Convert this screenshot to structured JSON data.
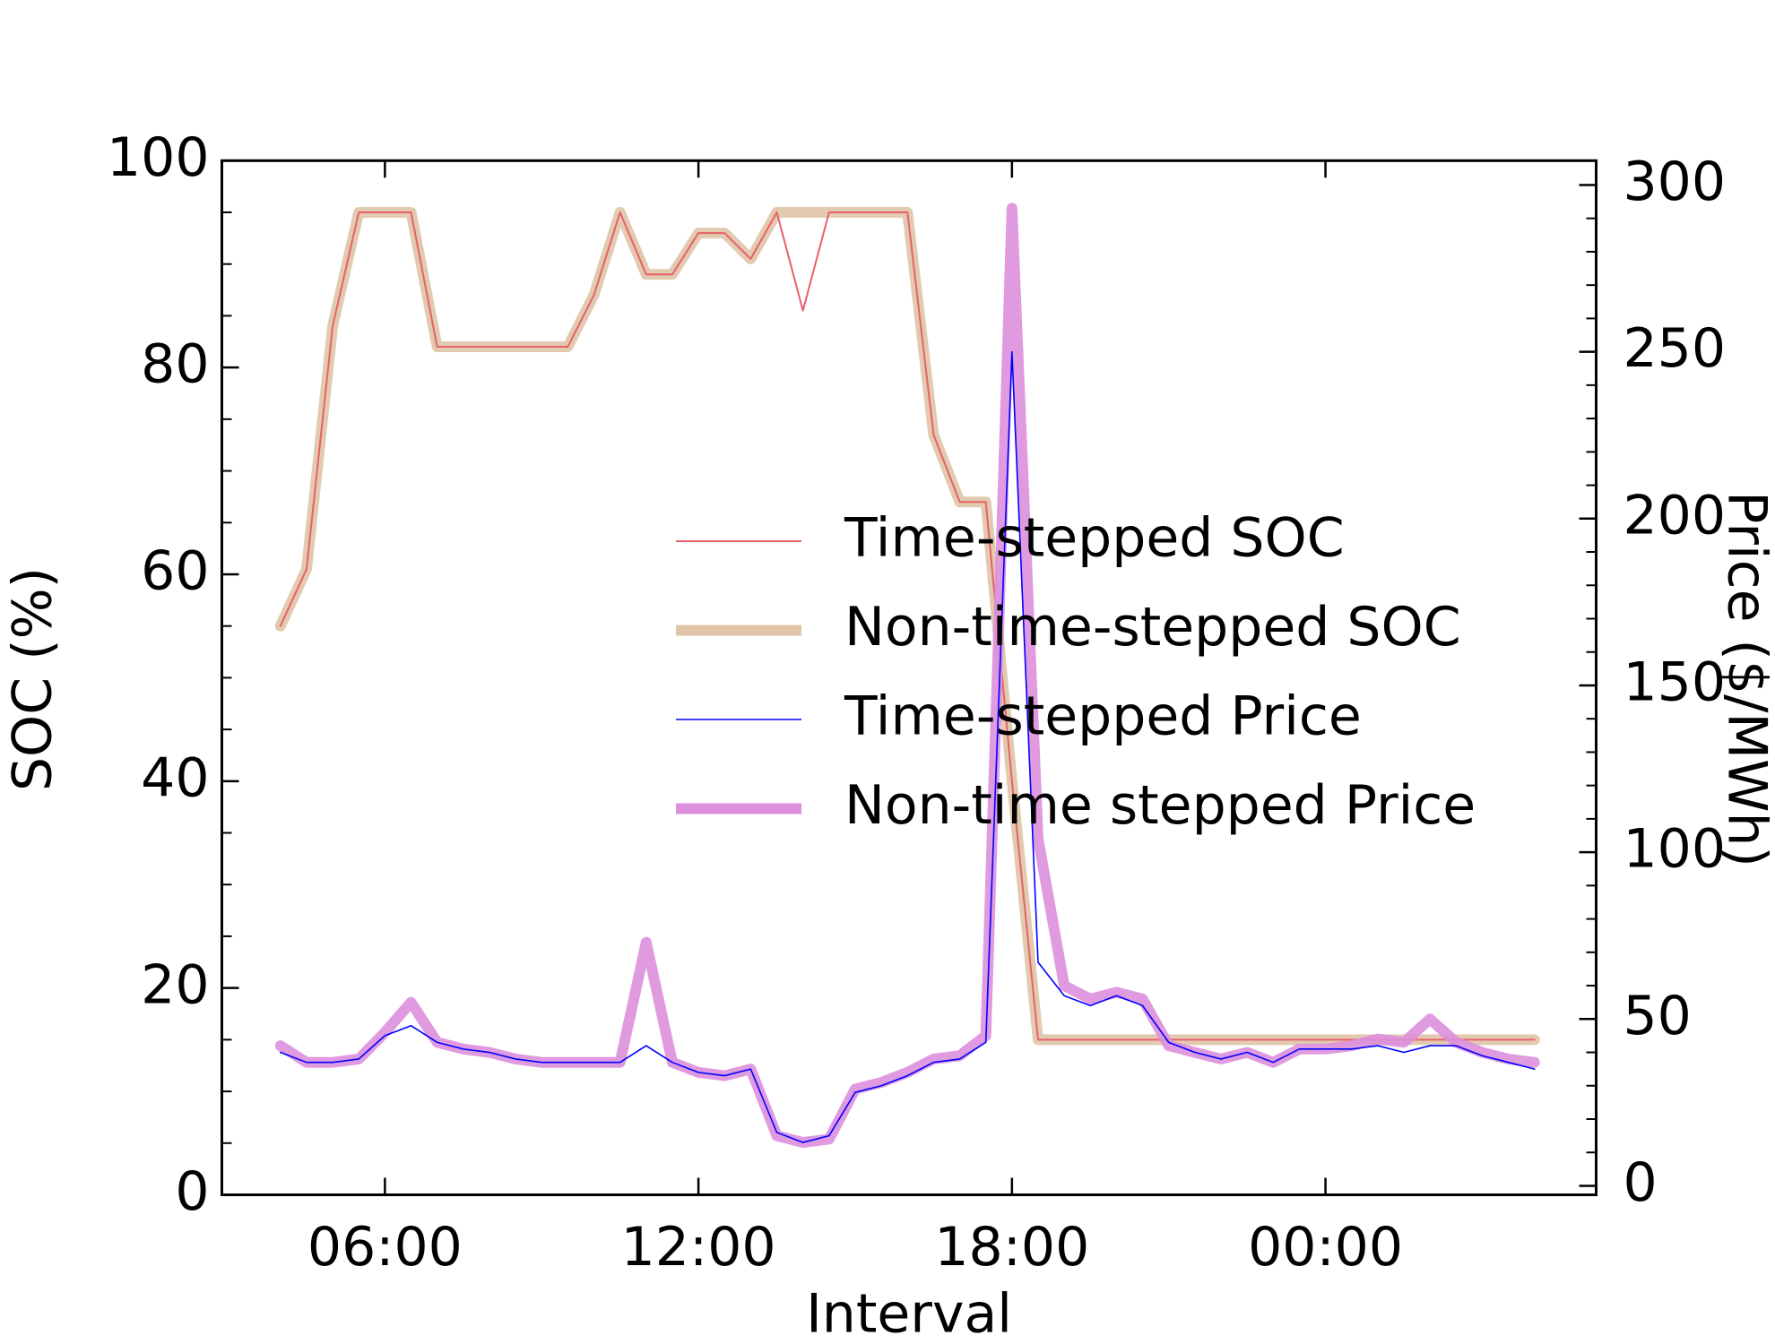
{
  "chart_data": {
    "type": "line",
    "x_label": "Interval",
    "y_label": "SOC (%)",
    "y2_label": "Price ($/MWh)",
    "x": [
      4,
      4.5,
      5,
      5.5,
      6,
      6.5,
      7,
      7.5,
      8,
      8.5,
      9,
      9.5,
      10,
      10.5,
      11,
      11.5,
      12,
      12.5,
      13,
      13.5,
      14,
      14.5,
      15,
      15.5,
      16,
      16.5,
      17,
      17.5,
      18,
      18.5,
      19,
      19.5,
      20,
      20.5,
      21,
      21.5,
      22,
      22.5,
      23,
      23.5,
      24,
      24.5,
      25,
      25.5,
      26,
      26.5,
      27,
      27.5,
      28
    ],
    "xlim": [
      2.88,
      29.18
    ],
    "xticks": [
      {
        "value": 6,
        "label": "06:00"
      },
      {
        "value": 12,
        "label": "12:00"
      },
      {
        "value": 18,
        "label": "18:00"
      },
      {
        "value": 24,
        "label": "00:00"
      }
    ],
    "ylim": [
      0,
      100
    ],
    "yticks": [
      0,
      20,
      40,
      60,
      80,
      100
    ],
    "yminorticks": [
      10,
      30,
      50,
      70,
      90,
      5,
      15,
      25,
      35,
      45,
      55,
      65,
      75,
      85,
      95
    ],
    "y2lim": [
      -2.7,
      307.3
    ],
    "y2ticks": [
      0,
      50,
      100,
      150,
      200,
      250,
      300
    ],
    "y2minorticks": [
      10,
      20,
      30,
      40,
      60,
      70,
      80,
      90,
      110,
      120,
      130,
      140,
      160,
      170,
      180,
      190,
      210,
      220,
      230,
      240,
      260,
      270,
      280,
      290
    ],
    "legend": "center",
    "series": [
      {
        "name": "Time-stepped SOC",
        "color": "#e8606a",
        "linewidth": 2,
        "values": [
          55,
          60.5,
          84,
          95,
          95,
          95,
          82,
          82,
          82,
          82,
          82,
          82,
          87,
          95,
          89,
          89,
          93,
          93,
          90.5,
          95,
          85.5,
          95,
          95,
          95,
          95,
          73.5,
          67,
          67,
          40,
          15,
          15,
          15,
          15,
          15,
          15,
          15,
          15,
          15,
          15,
          15,
          15,
          15,
          15,
          15,
          15,
          15,
          15,
          15,
          15
        ]
      },
      {
        "name": "Non-time-stepped SOC",
        "color": "#dfc4a8",
        "linewidth": 12,
        "values": [
          55,
          60.5,
          84,
          95,
          95,
          95,
          82,
          82,
          82,
          82,
          82,
          82,
          87,
          95,
          89,
          89,
          93,
          93,
          90.5,
          95,
          95,
          95,
          95,
          95,
          95,
          73.5,
          67,
          67,
          40,
          15,
          15,
          15,
          15,
          15,
          15,
          15,
          15,
          15,
          15,
          15,
          15,
          15,
          15,
          15,
          15,
          15,
          15,
          15,
          15
        ]
      },
      {
        "name": "Time-stepped Price",
        "color": "#0000ff",
        "linewidth": 1.6,
        "axis": "y2",
        "values": [
          40,
          37,
          37,
          38,
          45,
          48,
          43,
          41,
          40,
          38,
          37,
          37,
          37,
          37,
          42,
          37,
          34,
          33,
          35,
          16,
          13,
          15,
          28,
          30,
          33,
          37,
          38,
          43,
          250,
          67,
          57,
          54,
          57,
          54,
          43,
          40,
          38,
          40,
          37,
          41,
          41,
          41,
          42,
          40,
          42,
          42,
          39,
          37,
          35
        ]
      },
      {
        "name": "Non-time stepped Price",
        "color": "#dd8fdd",
        "linewidth": 12,
        "axis": "y2",
        "values": [
          42,
          37,
          37,
          38,
          46,
          55,
          43,
          41,
          40,
          38,
          37,
          37,
          37,
          37,
          73,
          37,
          34,
          33,
          35,
          15,
          13,
          14,
          29,
          31,
          34,
          38,
          39,
          45,
          293,
          104,
          60,
          56,
          58,
          56,
          42,
          40,
          38,
          40,
          37,
          41,
          41,
          42,
          44,
          43,
          50,
          43,
          40,
          38,
          37
        ]
      }
    ]
  }
}
